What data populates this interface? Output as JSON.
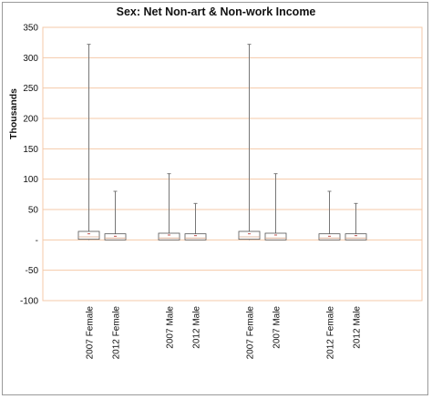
{
  "chart_data": {
    "type": "box",
    "title": "Sex: Net Non-art & Non-work Income",
    "ylabel": "Thousands",
    "xlabel": "",
    "ylim": [
      -100,
      350
    ],
    "yticks": [
      350,
      300,
      250,
      200,
      150,
      100,
      50,
      0,
      -50,
      -100
    ],
    "ytick_labels": [
      "350",
      "300",
      "250",
      "200",
      "150",
      "100",
      "50",
      "-",
      "-50",
      "-100"
    ],
    "grid": "horizontal",
    "gridline_color": "#f4c9a8",
    "categories": [
      "2007 Female",
      "2012 Female",
      "2007 Male",
      "2012 Male",
      "2007 Female",
      "2007 Male",
      "2012 Female",
      "2012 Male"
    ],
    "groups": [
      [
        0,
        1
      ],
      [
        2,
        3
      ],
      [
        4,
        5
      ],
      [
        6,
        7
      ]
    ],
    "boxes": [
      {
        "label": "2007 Female",
        "min": 0,
        "q1": 1,
        "median": 5,
        "mean": 10,
        "q3": 14,
        "max": 322
      },
      {
        "label": "2012 Female",
        "min": 0,
        "q1": 0,
        "median": 3,
        "mean": 6,
        "q3": 10,
        "max": 80
      },
      {
        "label": "2007 Male",
        "min": 0,
        "q1": 0,
        "median": 3,
        "mean": 8,
        "q3": 11,
        "max": 109
      },
      {
        "label": "2012 Male",
        "min": 0,
        "q1": 0,
        "median": 3,
        "mean": 7,
        "q3": 10,
        "max": 60
      },
      {
        "label": "2007 Female",
        "min": 0,
        "q1": 1,
        "median": 5,
        "mean": 10,
        "q3": 14,
        "max": 322
      },
      {
        "label": "2007 Male",
        "min": 0,
        "q1": 0,
        "median": 3,
        "mean": 8,
        "q3": 11,
        "max": 109
      },
      {
        "label": "2012 Female",
        "min": 0,
        "q1": 0,
        "median": 3,
        "mean": 6,
        "q3": 10,
        "max": 80
      },
      {
        "label": "2012 Male",
        "min": 0,
        "q1": 0,
        "median": 3,
        "mean": 7,
        "q3": 10,
        "max": 60
      }
    ]
  }
}
